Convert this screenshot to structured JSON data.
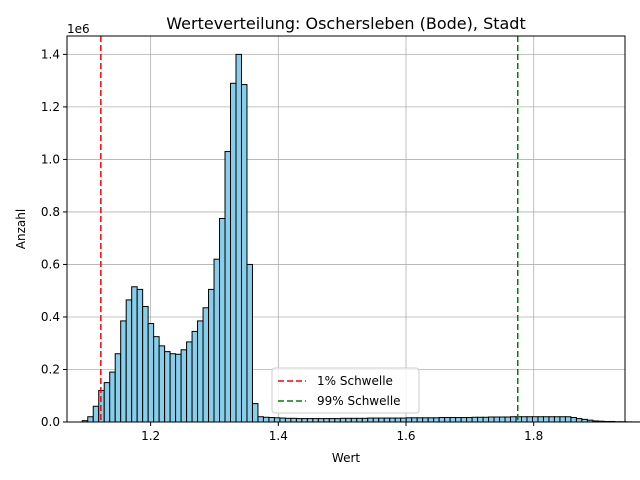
{
  "chart_data": {
    "type": "histogram",
    "title": "Werteverteilung: Oschersleben (Bode), Stadt",
    "xlabel": "Wert",
    "ylabel": "Anzahl",
    "y_offset_label": "1e6",
    "xlim": [
      1.069,
      1.943
    ],
    "ylim": [
      0,
      1470000
    ],
    "xticks": [
      {
        "value": 1.2,
        "label": "1.2"
      },
      {
        "value": 1.4,
        "label": "1.4"
      },
      {
        "value": 1.6,
        "label": "1.6"
      },
      {
        "value": 1.8,
        "label": "1.8"
      }
    ],
    "yticks": [
      {
        "value": 0,
        "label": "0.0"
      },
      {
        "value": 200000,
        "label": "0.2"
      },
      {
        "value": 400000,
        "label": "0.4"
      },
      {
        "value": 600000,
        "label": "0.6"
      },
      {
        "value": 800000,
        "label": "0.8"
      },
      {
        "value": 1000000,
        "label": "1.0"
      },
      {
        "value": 1200000,
        "label": "1.2"
      },
      {
        "value": 1400000,
        "label": "1.4"
      }
    ],
    "grid": true,
    "bar_color": "#87ceeb",
    "bar_edge_color": "#000000",
    "bin_start": 1.0929,
    "bin_width": 0.0086,
    "counts": [
      5000,
      20000,
      60000,
      120000,
      150000,
      190000,
      260000,
      385000,
      465000,
      515000,
      505000,
      440000,
      375000,
      325000,
      290000,
      268000,
      260000,
      258000,
      275000,
      305000,
      345000,
      385000,
      435000,
      505000,
      620000,
      775000,
      1030000,
      1290000,
      1400000,
      1285000,
      600000,
      70000,
      20000,
      18000,
      17000,
      16000,
      15000,
      14000,
      14000,
      13000,
      13000,
      13000,
      13000,
      13000,
      13000,
      13000,
      13000,
      14000,
      14000,
      14000,
      14000,
      14000,
      15000,
      15000,
      15000,
      15000,
      15000,
      15000,
      15000,
      16000,
      16000,
      16000,
      16000,
      16000,
      16000,
      17000,
      17000,
      17000,
      17000,
      17000,
      17000,
      18000,
      18000,
      18000,
      19000,
      19000,
      19000,
      19000,
      20000,
      20000,
      20000,
      20000,
      20000,
      20000,
      20000,
      20000,
      20000,
      20000,
      20000,
      17000,
      13000,
      10000,
      7000,
      4000,
      3000,
      2000,
      2000,
      1000,
      1000,
      500,
      300,
      200
    ],
    "thresholds": [
      {
        "name": "1% Schwelle",
        "value": 1.122,
        "color": "#ff0000"
      },
      {
        "name": "99% Schwelle",
        "value": 1.775,
        "color": "#008000"
      }
    ],
    "legend_position": "bottom-center"
  }
}
